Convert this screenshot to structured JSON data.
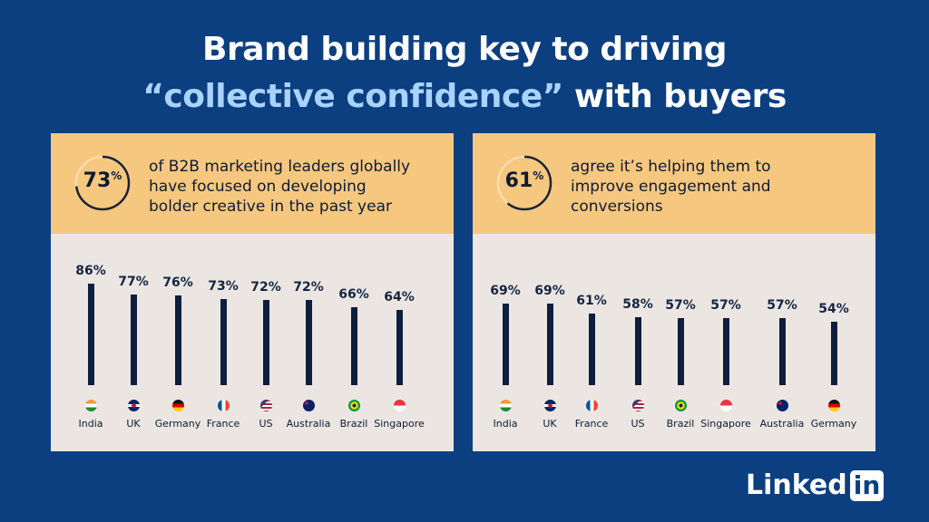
{
  "title": {
    "line1": "Brand building key to driving",
    "line2_highlight": "“collective confidence”",
    "line2_rest": " with buyers"
  },
  "brand": {
    "linked": "Linked",
    "in": "in"
  },
  "colors": {
    "background": "#0c3f80",
    "header": "#f6c77f",
    "panel": "#ebe6e2",
    "bar": "#0e1f3d",
    "highlight": "#a9d3ff"
  },
  "chart_data": [
    {
      "type": "bar",
      "stat": "73",
      "stat_unit": "%",
      "stat_value": 73,
      "description": [
        "of B2B marketing leaders globally",
        "have focused on developing",
        "bolder creative in the past year"
      ],
      "categories": [
        "India",
        "UK",
        "Germany",
        "France",
        "US",
        "Australia",
        "Brazil",
        "Singapore"
      ],
      "values": [
        86,
        77,
        76,
        73,
        72,
        72,
        66,
        64
      ],
      "labels": [
        "86%",
        "77%",
        "76%",
        "73%",
        "72%",
        "72%",
        "66%",
        "64%"
      ],
      "ylim": [
        0,
        100
      ]
    },
    {
      "type": "bar",
      "stat": "61",
      "stat_unit": "%",
      "stat_value": 61,
      "description": [
        "agree it’s helping them to",
        "improve engagement and",
        "conversions"
      ],
      "categories": [
        "India",
        "UK",
        "France",
        "US",
        "Brazil",
        "Singapore",
        "Australia",
        "Germany"
      ],
      "values": [
        69,
        69,
        61,
        58,
        57,
        57,
        57,
        54
      ],
      "labels": [
        "69%",
        "69%",
        "61%",
        "58%",
        "57%",
        "57%",
        "57%",
        "54%"
      ],
      "ylim": [
        0,
        100
      ]
    }
  ]
}
